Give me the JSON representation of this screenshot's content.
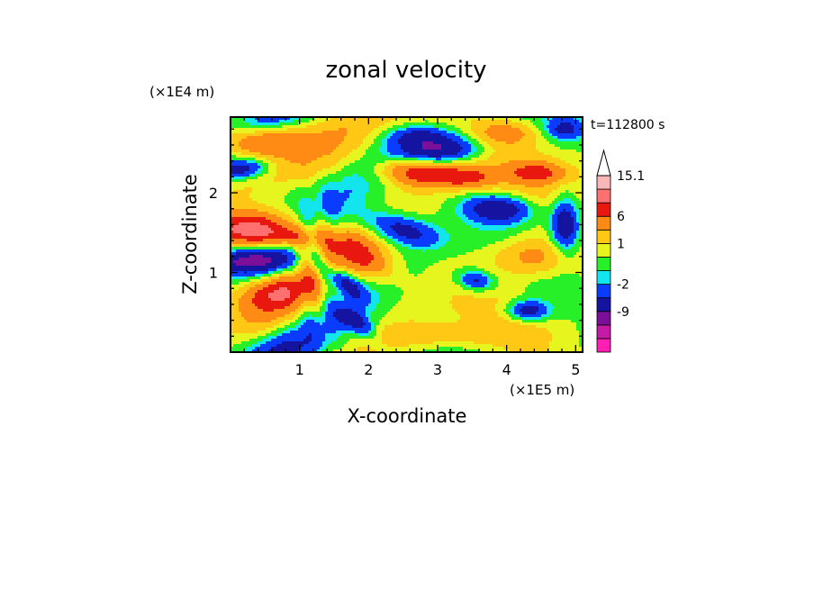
{
  "chart_data": {
    "type": "heatmap",
    "title": "zonal velocity",
    "xlabel": "X-coordinate",
    "ylabel": "Z-coordinate",
    "x_unit": "(×1E5 m)",
    "y_unit": "(×1E4 m)",
    "time_label": "t=112800 s",
    "xlim": [
      0,
      5.1
    ],
    "ylim": [
      0,
      2.95
    ],
    "x_ticks": [
      1,
      2,
      3,
      4,
      5
    ],
    "y_ticks": [
      1,
      2
    ],
    "colorbar": {
      "levels": [
        {
          "label": "",
          "color": "#ff1fb4"
        },
        {
          "label": "",
          "color": "#c51aa5"
        },
        {
          "label": "-9",
          "color": "#7b0f99"
        },
        {
          "label": "",
          "color": "#1414a0"
        },
        {
          "label": "-2",
          "color": "#0a3cff"
        },
        {
          "label": "",
          "color": "#12e5ee"
        },
        {
          "label": "",
          "color": "#28f028"
        },
        {
          "label": "1",
          "color": "#e6f51e"
        },
        {
          "label": "",
          "color": "#ffc815"
        },
        {
          "label": "6",
          "color": "#ff8a14"
        },
        {
          "label": "",
          "color": "#e8180f"
        },
        {
          "label": "",
          "color": "#ff7070"
        },
        {
          "label": "15.1",
          "color": "#f8b6b6"
        }
      ],
      "extend_max": true
    },
    "features": [
      {
        "x": 3.0,
        "z": 2.55,
        "u": -8,
        "sx": 0.45,
        "sz": 0.12,
        "tilt": -0.15
      },
      {
        "x": 2.7,
        "z": 2.73,
        "u": -4,
        "sx": 0.35,
        "sz": 0.08,
        "tilt": -0.1
      },
      {
        "x": 3.4,
        "z": 2.2,
        "u": 7,
        "sx": 0.3,
        "sz": 0.1,
        "tilt": 0.1
      },
      {
        "x": 2.7,
        "z": 2.25,
        "u": 8,
        "sx": 0.35,
        "sz": 0.12,
        "tilt": 0.3
      },
      {
        "x": 2.45,
        "z": 1.55,
        "u": -7,
        "sx": 0.35,
        "sz": 0.16,
        "tilt": 0.6
      },
      {
        "x": 1.9,
        "z": 1.2,
        "u": 6,
        "sx": 0.25,
        "sz": 0.2,
        "tilt": 0.5
      },
      {
        "x": 0.25,
        "z": 1.55,
        "u": 10,
        "sx": 0.4,
        "sz": 0.15,
        "tilt": -0.2
      },
      {
        "x": 0.9,
        "z": 1.45,
        "u": 6,
        "sx": 0.35,
        "sz": 0.1,
        "tilt": 0.1
      },
      {
        "x": 0.3,
        "z": 1.15,
        "u": -8,
        "sx": 0.45,
        "sz": 0.12,
        "tilt": -0.2
      },
      {
        "x": 0.2,
        "z": 2.3,
        "u": -7,
        "sx": 0.3,
        "sz": 0.1,
        "tilt": -0.4
      },
      {
        "x": 0.4,
        "z": 2.65,
        "u": 6,
        "sx": 0.4,
        "sz": 0.12,
        "tilt": -0.3
      },
      {
        "x": 0.65,
        "z": 0.75,
        "u": 7,
        "sx": 0.35,
        "sz": 0.15,
        "tilt": -0.3
      },
      {
        "x": 4.35,
        "z": 1.2,
        "u": 6,
        "sx": 0.4,
        "sz": 0.18,
        "tilt": 0.0
      },
      {
        "x": 3.9,
        "z": 1.8,
        "u": -7,
        "sx": 0.35,
        "sz": 0.12,
        "tilt": 0.1
      },
      {
        "x": 4.45,
        "z": 2.25,
        "u": 6,
        "sx": 0.3,
        "sz": 0.09,
        "tilt": 0.0
      },
      {
        "x": 4.3,
        "z": 0.52,
        "u": -7,
        "sx": 0.22,
        "sz": 0.09,
        "tilt": 0.0
      },
      {
        "x": 3.55,
        "z": 0.9,
        "u": -6,
        "sx": 0.18,
        "sz": 0.09,
        "tilt": 0.2
      },
      {
        "x": 3.0,
        "z": 0.2,
        "u": 3,
        "sx": 0.9,
        "sz": 0.1,
        "tilt": 0.0
      },
      {
        "x": 1.85,
        "z": 0.35,
        "u": -5,
        "sx": 0.15,
        "sz": 0.15,
        "tilt": 0.5
      },
      {
        "x": 4.85,
        "z": 1.6,
        "u": -8,
        "sx": 0.15,
        "sz": 0.25,
        "tilt": 0.0
      },
      {
        "x": 4.85,
        "z": 2.8,
        "u": -5,
        "sx": 0.2,
        "sz": 0.1,
        "tilt": 0.0
      },
      {
        "x": 1.6,
        "z": 0.9,
        "u": -7,
        "sx": 0.15,
        "sz": 0.15,
        "tilt": 0.5
      },
      {
        "x": 4.0,
        "z": 2.75,
        "u": 4,
        "sx": 0.3,
        "sz": 0.1,
        "tilt": 0.0
      }
    ]
  }
}
